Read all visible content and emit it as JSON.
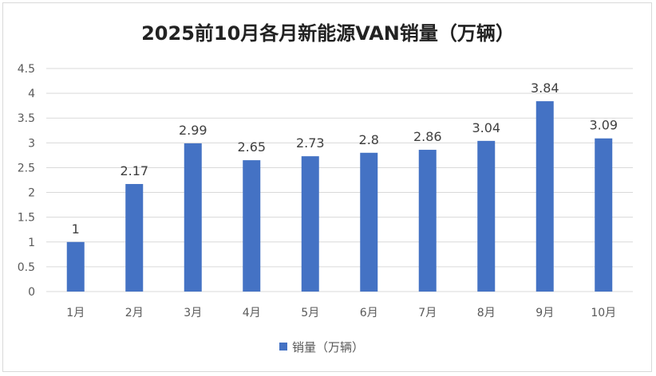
{
  "chart_data": {
    "type": "bar",
    "title": "2025前10月各月新能源VAN销量（万辆）",
    "categories": [
      "1月",
      "2月",
      "3月",
      "4月",
      "5月",
      "6月",
      "7月",
      "8月",
      "9月",
      "10月"
    ],
    "series": [
      {
        "name": "销量（万辆）",
        "values": [
          1,
          2.17,
          2.99,
          2.65,
          2.73,
          2.8,
          2.86,
          3.04,
          3.84,
          3.09
        ],
        "data_labels": [
          "1",
          "2.17",
          "2.99",
          "2.65",
          "2.73",
          "2.8",
          "2.86",
          "3.04",
          "3.84",
          "3.09"
        ]
      }
    ],
    "y_ticks": [
      "0",
      "0.5",
      "1",
      "1.5",
      "2",
      "2.5",
      "3",
      "3.5",
      "4",
      "4.5"
    ],
    "ylim": [
      0,
      4.5
    ],
    "grid": true,
    "legend_position": "bottom",
    "colors": {
      "bar": "#4472c4",
      "grid": "#d9d9d9"
    }
  }
}
